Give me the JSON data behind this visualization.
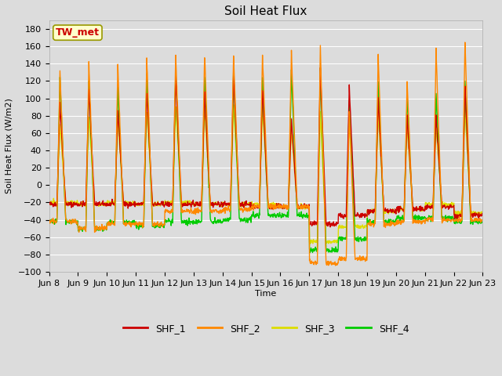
{
  "title": "Soil Heat Flux",
  "xlabel": "Time",
  "ylabel": "Soil Heat Flux (W/m2)",
  "ylim": [
    -100,
    190
  ],
  "yticks": [
    -100,
    -80,
    -60,
    -40,
    -20,
    0,
    20,
    40,
    60,
    80,
    100,
    120,
    140,
    160,
    180
  ],
  "xtick_labels": [
    "Jun 8",
    "Jun 9",
    "Jun 10",
    "Jun 11",
    "Jun 12",
    "Jun 13",
    "Jun 14",
    "Jun 15",
    "Jun 16",
    "Jun 17",
    "Jun 18",
    "Jun 19",
    "Jun 20",
    "Jun 21",
    "Jun 22",
    "Jun 23"
  ],
  "colors": {
    "SHF_1": "#cc0000",
    "SHF_2": "#ff8800",
    "SHF_3": "#dddd00",
    "SHF_4": "#00cc00"
  },
  "legend_label": "TW_met",
  "background_color": "#dcdcdc",
  "plot_bg_color": "#dcdcdc",
  "grid_color": "#ffffff",
  "line_width": 1.0,
  "title_fontsize": 11,
  "axis_fontsize": 8,
  "tick_fontsize": 8
}
